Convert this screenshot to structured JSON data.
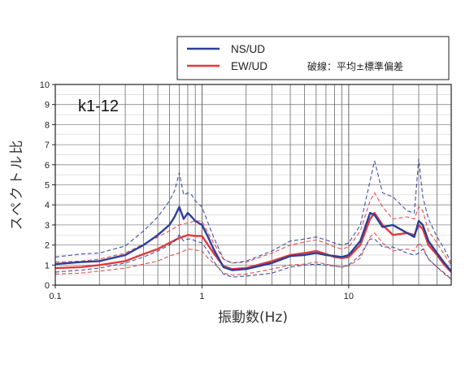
{
  "chart_data": {
    "type": "line",
    "panel_label": "k1-12",
    "xlabel": "振動数(Hz)",
    "ylabel": "スペクトル比",
    "x_scale": "log",
    "xlim": [
      0.1,
      50
    ],
    "ylim": [
      0,
      10
    ],
    "x_tick_labels": [
      "0.1",
      "1",
      "10"
    ],
    "y_tick_labels": [
      "0",
      "1",
      "2",
      "3",
      "4",
      "5",
      "6",
      "7",
      "8",
      "9",
      "10"
    ],
    "grid": true,
    "legend_position": "top-right",
    "legend_note": "破線：平均±標準偏差",
    "series": [
      {
        "name": "NS/UD",
        "color": "#2b3f9c",
        "x": [
          0.1,
          0.15,
          0.2,
          0.3,
          0.4,
          0.5,
          0.6,
          0.65,
          0.7,
          0.75,
          0.8,
          0.85,
          0.9,
          1.0,
          1.1,
          1.2,
          1.4,
          1.6,
          2.0,
          3.0,
          4.0,
          5.0,
          6.0,
          7.0,
          8.0,
          9.0,
          10,
          12,
          14,
          15,
          17,
          20,
          25,
          28,
          30,
          32,
          35,
          40,
          45,
          50
        ],
        "mean": [
          1.05,
          1.15,
          1.2,
          1.5,
          2.0,
          2.5,
          3.0,
          3.4,
          3.9,
          3.3,
          3.6,
          3.4,
          3.2,
          3.0,
          2.4,
          1.8,
          0.9,
          0.75,
          0.8,
          1.1,
          1.45,
          1.5,
          1.6,
          1.5,
          1.45,
          1.4,
          1.5,
          2.2,
          3.6,
          3.5,
          2.9,
          3.0,
          2.6,
          2.4,
          3.2,
          3.0,
          2.2,
          1.6,
          1.1,
          0.7
        ],
        "upper": [
          1.4,
          1.55,
          1.6,
          1.95,
          2.7,
          3.4,
          4.2,
          4.7,
          5.6,
          4.5,
          4.6,
          4.5,
          4.2,
          3.9,
          3.1,
          2.4,
          1.3,
          1.1,
          1.2,
          1.7,
          2.2,
          2.3,
          2.4,
          2.25,
          2.1,
          2.0,
          2.1,
          3.0,
          5.2,
          6.2,
          4.6,
          4.4,
          3.7,
          3.6,
          6.3,
          4.4,
          3.3,
          2.4,
          1.8,
          1.1
        ],
        "lower": [
          0.65,
          0.75,
          0.85,
          1.1,
          1.4,
          1.7,
          2.0,
          2.2,
          2.5,
          2.2,
          2.3,
          2.3,
          2.2,
          2.1,
          1.7,
          1.2,
          0.55,
          0.4,
          0.45,
          0.6,
          0.9,
          1.0,
          1.05,
          1.0,
          0.95,
          0.9,
          1.0,
          1.5,
          2.3,
          2.3,
          1.9,
          1.9,
          1.6,
          1.5,
          1.6,
          1.8,
          1.3,
          0.9,
          0.6,
          0.3
        ]
      },
      {
        "name": "EW/UD",
        "color": "#e23a3a",
        "x": [
          0.1,
          0.15,
          0.2,
          0.3,
          0.4,
          0.5,
          0.6,
          0.7,
          0.8,
          0.9,
          1.0,
          1.1,
          1.2,
          1.4,
          1.6,
          2.0,
          3.0,
          4.0,
          5.0,
          6.0,
          7.0,
          8.0,
          9.0,
          10,
          12,
          14,
          15,
          17,
          20,
          25,
          28,
          30,
          32,
          35,
          40,
          45,
          50
        ],
        "mean": [
          0.85,
          0.9,
          1.0,
          1.2,
          1.55,
          1.8,
          2.1,
          2.35,
          2.5,
          2.45,
          2.45,
          2.0,
          1.6,
          0.95,
          0.8,
          0.85,
          1.2,
          1.5,
          1.6,
          1.7,
          1.55,
          1.4,
          1.35,
          1.4,
          2.0,
          3.3,
          3.6,
          3.0,
          2.5,
          2.6,
          2.5,
          3.0,
          2.8,
          2.0,
          1.5,
          1.0,
          0.65
        ],
        "upper": [
          1.15,
          1.2,
          1.3,
          1.6,
          2.05,
          2.4,
          2.7,
          3.0,
          3.1,
          3.2,
          3.2,
          2.6,
          2.1,
          1.3,
          1.1,
          1.15,
          1.6,
          2.0,
          2.15,
          2.25,
          2.1,
          1.9,
          1.8,
          1.9,
          2.7,
          4.2,
          4.6,
          3.9,
          3.3,
          3.4,
          3.3,
          3.9,
          3.7,
          2.7,
          2.1,
          1.5,
          1.0
        ],
        "lower": [
          0.55,
          0.6,
          0.7,
          0.85,
          1.05,
          1.2,
          1.45,
          1.6,
          1.8,
          1.75,
          1.7,
          1.35,
          1.1,
          0.6,
          0.5,
          0.55,
          0.8,
          1.0,
          1.05,
          1.15,
          1.05,
          0.95,
          0.9,
          0.95,
          1.35,
          2.4,
          2.6,
          2.1,
          1.7,
          1.8,
          1.7,
          2.1,
          1.9,
          1.3,
          0.9,
          0.55,
          0.3
        ]
      }
    ]
  }
}
